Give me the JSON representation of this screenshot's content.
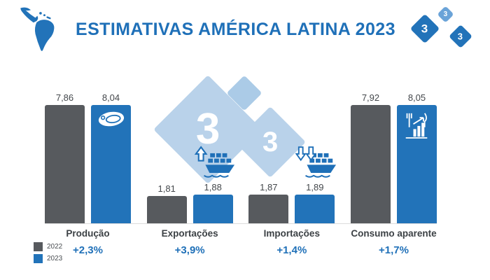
{
  "header": {
    "title": "ESTIMATIVAS AMÉRICA LATINA 2023",
    "logo": {
      "digits": [
        "3",
        "3",
        "3"
      ]
    }
  },
  "watermark": {
    "digits": [
      "3",
      "3"
    ]
  },
  "colors": {
    "accent_blue": "#1f70b8",
    "bar_blue": "#2273b9",
    "bar_gray": "#575a5e",
    "watermark_blue": "#b9d2ea",
    "text_dark": "#3c4145"
  },
  "icons": {
    "header_left": "latin-america-map-icon",
    "brand": "logo-333",
    "watermark": "logo-333-watermark",
    "producao": "steak-icon",
    "exportacoes": "cargo-ship-up-arrow-icon",
    "importacoes": "cargo-ship-down-arrows-icon",
    "consumo": "food-scale-utensils-icon"
  },
  "chart_data": {
    "type": "bar",
    "title": "ESTIMATIVAS AMÉRICA LATINA 2023",
    "categories": [
      "Produção",
      "Exportações",
      "Importações",
      "Consumo aparente"
    ],
    "series": [
      {
        "name": "2022",
        "color": "#575a5e",
        "values": [
          7.86,
          1.81,
          1.87,
          7.92
        ],
        "labels": [
          "7,86",
          "1,81",
          "1,87",
          "7,92"
        ]
      },
      {
        "name": "2023",
        "color": "#2273b9",
        "values": [
          8.04,
          1.88,
          1.89,
          8.05
        ],
        "labels": [
          "8,04",
          "1,88",
          "1,89",
          "8,05"
        ]
      }
    ],
    "deltas": [
      "+2,3%",
      "+3,9%",
      "+1,4%",
      "+1,7%"
    ],
    "ylim": [
      0,
      8.6
    ],
    "grid": false,
    "legend_position": "bottom-left"
  }
}
